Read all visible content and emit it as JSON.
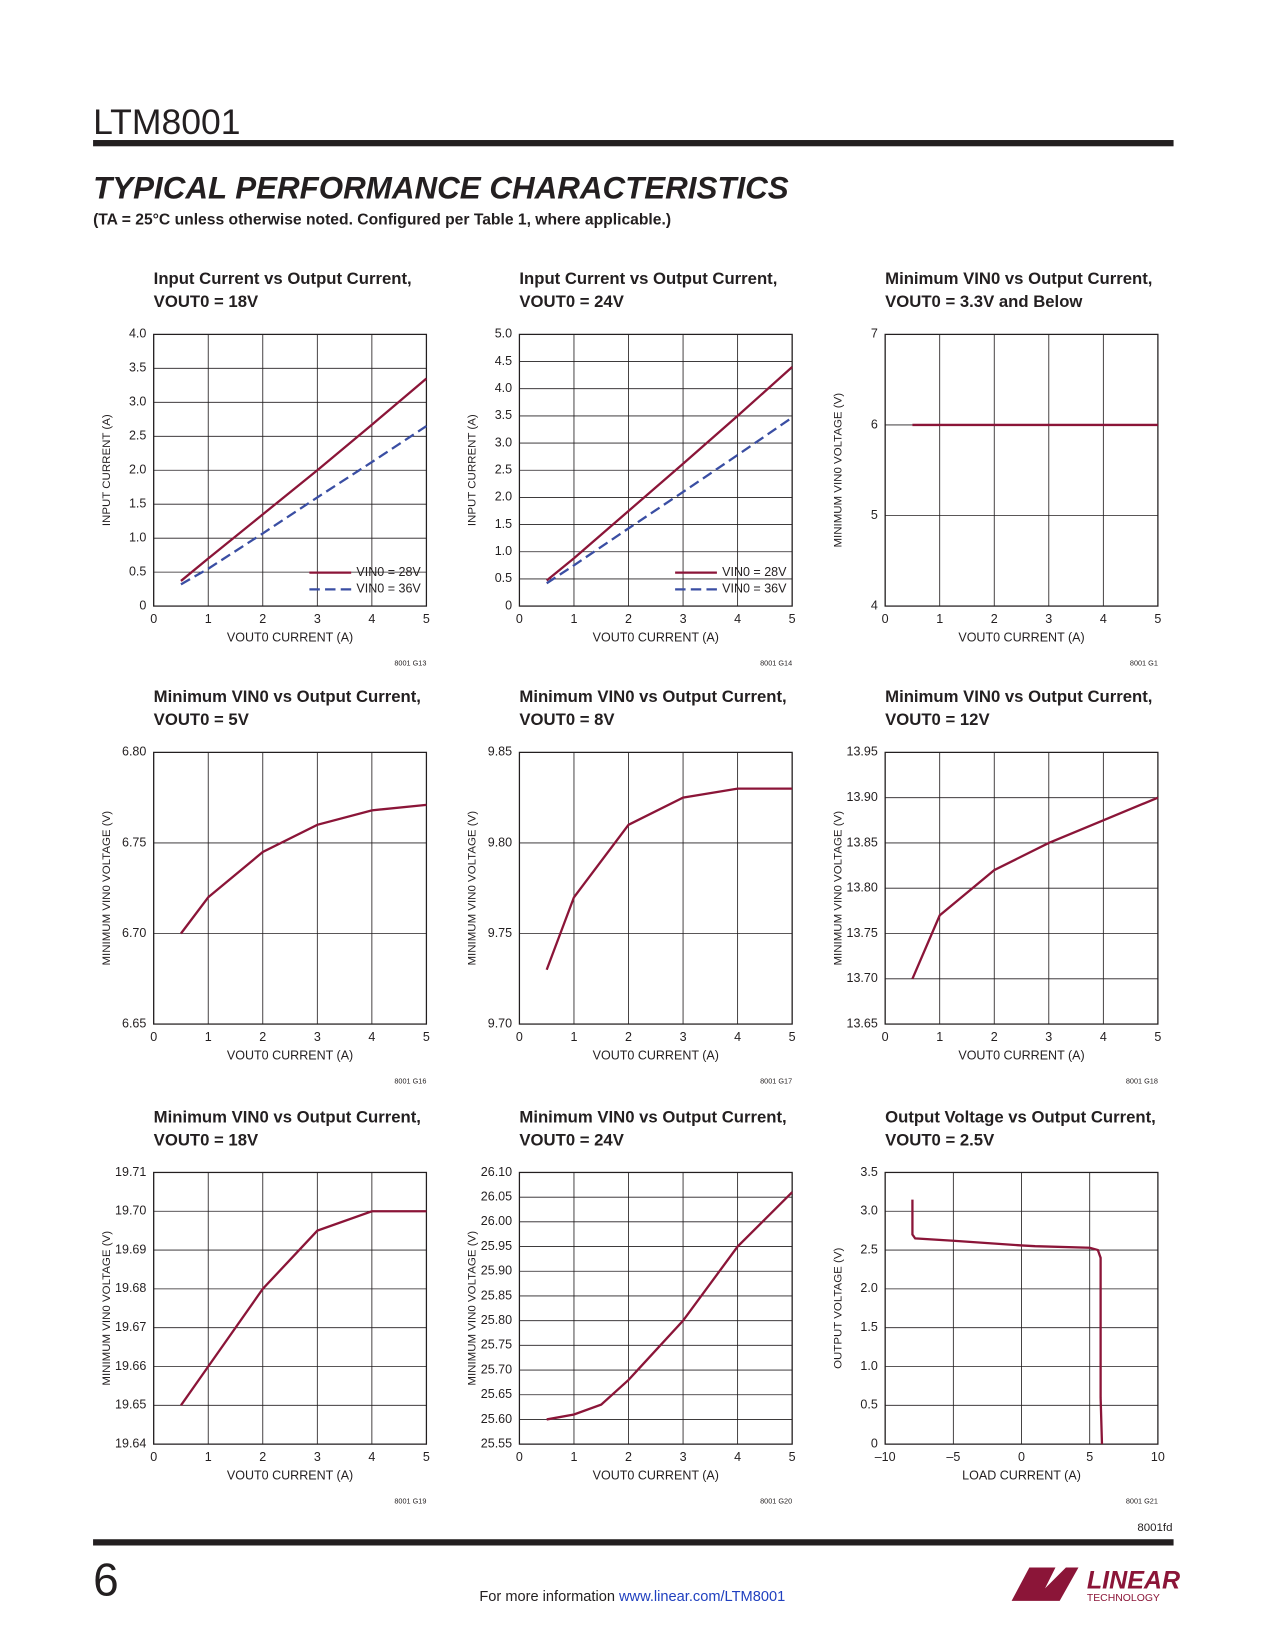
{
  "header": {
    "part": "LTM8001"
  },
  "section": {
    "title": "TYPICAL PERFORMANCE CHARACTERISTICS",
    "subtitle": "(TA = 25°C unless otherwise noted. Configured per Table 1, where applicable.)"
  },
  "chart_data": [
    {
      "type": "line",
      "title": [
        "Input Current vs Output Current,",
        "VOUT0 = 18V"
      ],
      "xlabel": "VOUT0 CURRENT (A)",
      "ylabel": "INPUT CURRENT (A)",
      "code": "8001 G13",
      "x": [
        0.5,
        1,
        2,
        3,
        4,
        5
      ],
      "series": [
        {
          "name": "VIN0 = 28V",
          "color": "#8b1538",
          "line_style": "solid",
          "values": [
            0.37,
            0.7,
            1.35,
            2.0,
            2.67,
            3.35
          ]
        },
        {
          "name": "VIN0 = 36V",
          "color": "#3a4ea3",
          "line_style": "dashed",
          "values": [
            0.32,
            0.55,
            1.07,
            1.6,
            2.12,
            2.65
          ]
        }
      ],
      "xlim": [
        0,
        5
      ],
      "ylim": [
        0,
        4
      ],
      "xticks": [
        0,
        1,
        2,
        3,
        4,
        5
      ],
      "yticks": [
        0,
        0.5,
        {
          "value": 1,
          "label": "1.0"
        },
        1.5,
        {
          "value": 2,
          "label": "2.0"
        },
        2.5,
        {
          "value": 3,
          "label": "3.0"
        },
        3.5,
        {
          "value": 4,
          "label": "4.0"
        }
      ],
      "grid": true,
      "legend": "bottom-right"
    },
    {
      "type": "line",
      "title": [
        "Input Current vs Output Current,",
        "VOUT0 = 24V"
      ],
      "xlabel": "VOUT0 CURRENT (A)",
      "ylabel": "INPUT CURRENT (A)",
      "code": "8001 G14",
      "x": [
        0.5,
        1,
        2,
        3,
        4,
        5
      ],
      "series": [
        {
          "name": "VIN0 = 28V",
          "color": "#8b1538",
          "line_style": "solid",
          "values": [
            0.47,
            0.88,
            1.75,
            2.62,
            3.5,
            4.4
          ]
        },
        {
          "name": "VIN0 = 36V",
          "color": "#3a4ea3",
          "line_style": "dashed",
          "values": [
            0.42,
            0.75,
            1.43,
            2.1,
            2.78,
            3.47
          ]
        }
      ],
      "xlim": [
        0,
        5
      ],
      "ylim": [
        0,
        5
      ],
      "xticks": [
        0,
        1,
        2,
        3,
        4,
        5
      ],
      "yticks": [
        0,
        0.5,
        {
          "value": 1,
          "label": "1.0"
        },
        1.5,
        {
          "value": 2,
          "label": "2.0"
        },
        2.5,
        {
          "value": 3,
          "label": "3.0"
        },
        3.5,
        {
          "value": 4,
          "label": "4.0"
        },
        4.5,
        {
          "value": 5,
          "label": "5.0"
        }
      ],
      "grid": true,
      "legend": "bottom-right"
    },
    {
      "type": "line",
      "title": [
        "Minimum VIN0 vs Output Current,",
        "VOUT0 = 3.3V and Below"
      ],
      "xlabel": "VOUT0 CURRENT (A)",
      "ylabel": "MINIMUM VIN0 VOLTAGE (V)",
      "code": "8001 G1",
      "x": [
        0.5,
        1,
        2,
        3,
        4,
        5
      ],
      "series": [
        {
          "color": "#8b1538",
          "values": [
            6,
            6,
            6,
            6,
            6,
            6
          ]
        }
      ],
      "xlim": [
        0,
        5
      ],
      "ylim": [
        4,
        7
      ],
      "xticks": [
        0,
        1,
        2,
        3,
        4,
        5
      ],
      "yticks": [
        4,
        5,
        6,
        7
      ],
      "grid": true
    },
    {
      "type": "line",
      "title": [
        "Minimum VIN0 vs Output Current,",
        "VOUT0 = 5V"
      ],
      "xlabel": "VOUT0 CURRENT (A)",
      "ylabel": "MINIMUM VIN0 VOLTAGE (V)",
      "code": "8001 G16",
      "x": [
        0.5,
        1,
        2,
        3,
        4,
        5
      ],
      "series": [
        {
          "color": "#8b1538",
          "values": [
            6.7,
            6.72,
            6.745,
            6.76,
            6.768,
            6.771
          ]
        }
      ],
      "xlim": [
        0,
        5
      ],
      "ylim": [
        6.65,
        6.8
      ],
      "xticks": [
        0,
        1,
        2,
        3,
        4,
        5
      ],
      "yticks": [
        6.65,
        {
          "value": 6.7,
          "label": "6.70"
        },
        6.75,
        {
          "value": 6.8,
          "label": "6.80"
        }
      ],
      "grid": true
    },
    {
      "type": "line",
      "title": [
        "Minimum VIN0 vs Output Current,",
        "VOUT0 = 8V"
      ],
      "xlabel": "VOUT0 CURRENT (A)",
      "ylabel": "MINIMUM VIN0 VOLTAGE (V)",
      "code": "8001 G17",
      "x": [
        0.5,
        1,
        2,
        3,
        4,
        5
      ],
      "series": [
        {
          "color": "#8b1538",
          "values": [
            9.73,
            9.77,
            9.81,
            9.825,
            9.83,
            9.83
          ]
        }
      ],
      "xlim": [
        0,
        5
      ],
      "ylim": [
        9.7,
        9.85
      ],
      "xticks": [
        0,
        1,
        2,
        3,
        4,
        5
      ],
      "yticks": [
        {
          "value": 9.7,
          "label": "9.70"
        },
        9.75,
        {
          "value": 9.8,
          "label": "9.80"
        },
        9.85
      ],
      "grid": true
    },
    {
      "type": "line",
      "title": [
        "Minimum VIN0 vs Output Current,",
        "VOUT0 = 12V"
      ],
      "xlabel": "VOUT0 CURRENT (A)",
      "ylabel": "MINIMUM VIN0 VOLTAGE (V)",
      "code": "8001 G18",
      "x": [
        0.5,
        1,
        2,
        3,
        4,
        5
      ],
      "series": [
        {
          "color": "#8b1538",
          "values": [
            13.7,
            13.77,
            13.82,
            13.85,
            13.875,
            13.9
          ]
        }
      ],
      "xlim": [
        0,
        5
      ],
      "ylim": [
        13.65,
        13.95
      ],
      "xticks": [
        0,
        1,
        2,
        3,
        4,
        5
      ],
      "yticks": [
        13.65,
        {
          "value": 13.7,
          "label": "13.70"
        },
        13.75,
        {
          "value": 13.8,
          "label": "13.80"
        },
        13.85,
        {
          "value": 13.9,
          "label": "13.90"
        },
        13.95
      ],
      "grid": true
    },
    {
      "type": "line",
      "title": [
        "Minimum VIN0 vs Output Current,",
        "VOUT0 = 18V"
      ],
      "xlabel": "VOUT0 CURRENT (A)",
      "ylabel": "MINIMUM VIN0 VOLTAGE (V)",
      "code": "8001 G19",
      "x": [
        0.5,
        1,
        2,
        3,
        4,
        5
      ],
      "series": [
        {
          "color": "#8b1538",
          "values": [
            19.65,
            19.66,
            19.68,
            19.695,
            19.7,
            19.7
          ]
        }
      ],
      "xlim": [
        0,
        5
      ],
      "ylim": [
        19.64,
        19.71
      ],
      "xticks": [
        0,
        1,
        2,
        3,
        4,
        5
      ],
      "yticks": [
        19.64,
        19.65,
        19.66,
        19.67,
        19.68,
        19.69,
        {
          "value": 19.7,
          "label": "19.70"
        },
        19.71
      ],
      "grid": true
    },
    {
      "type": "line",
      "title": [
        "Minimum VIN0 vs Output Current,",
        "VOUT0 = 24V"
      ],
      "xlabel": "VOUT0 CURRENT (A)",
      "ylabel": "MINIMUM VIN0 VOLTAGE (V)",
      "code": "8001 G20",
      "x": [
        0.5,
        1,
        1.5,
        2,
        3,
        4,
        5
      ],
      "series": [
        {
          "color": "#8b1538",
          "values": [
            25.6,
            25.61,
            25.63,
            25.68,
            25.8,
            25.95,
            26.06
          ]
        }
      ],
      "xlim": [
        0,
        5
      ],
      "ylim": [
        25.55,
        26.1
      ],
      "xticks": [
        0,
        1,
        2,
        3,
        4,
        5
      ],
      "yticks": [
        25.55,
        {
          "value": 25.6,
          "label": "25.60"
        },
        25.65,
        {
          "value": 25.7,
          "label": "25.70"
        },
        25.75,
        {
          "value": 25.8,
          "label": "25.80"
        },
        25.85,
        {
          "value": 25.9,
          "label": "25.90"
        },
        25.95,
        {
          "value": 26,
          "label": "26.00"
        },
        26.05,
        {
          "value": 26.1,
          "label": "26.10"
        }
      ],
      "grid": true
    },
    {
      "type": "line",
      "title": [
        "Output Voltage vs Output Current,",
        "VOUT0 = 2.5V"
      ],
      "xlabel": "LOAD CURRENT (A)",
      "ylabel": "OUTPUT VOLTAGE (V)",
      "code": "8001 G21",
      "x": [
        -8,
        -8,
        -7.8,
        -5,
        0,
        1,
        5,
        5.6,
        5.8,
        5.8,
        5.9
      ],
      "series": [
        {
          "color": "#8b1538",
          "values": [
            3.15,
            2.7,
            2.65,
            2.62,
            2.56,
            2.55,
            2.53,
            2.5,
            2.4,
            0.6,
            0
          ]
        }
      ],
      "xlim": [
        -10,
        10
      ],
      "ylim": [
        0,
        3.5
      ],
      "xticks": [
        {
          "value": -10,
          "label": "–10"
        },
        {
          "value": -5,
          "label": "–5"
        },
        0,
        5,
        10
      ],
      "yticks": [
        0,
        0.5,
        {
          "value": 1,
          "label": "1.0"
        },
        1.5,
        {
          "value": 2,
          "label": "2.0"
        },
        2.5,
        {
          "value": 3,
          "label": "3.0"
        },
        3.5
      ],
      "grid": true
    }
  ],
  "footer": {
    "doc_code": "8001fd",
    "page": "6",
    "text": "For more information ",
    "link": "www.linear.com/LTM8001",
    "logo": "LINEAR",
    "logo_sub": "TECHNOLOGY"
  }
}
